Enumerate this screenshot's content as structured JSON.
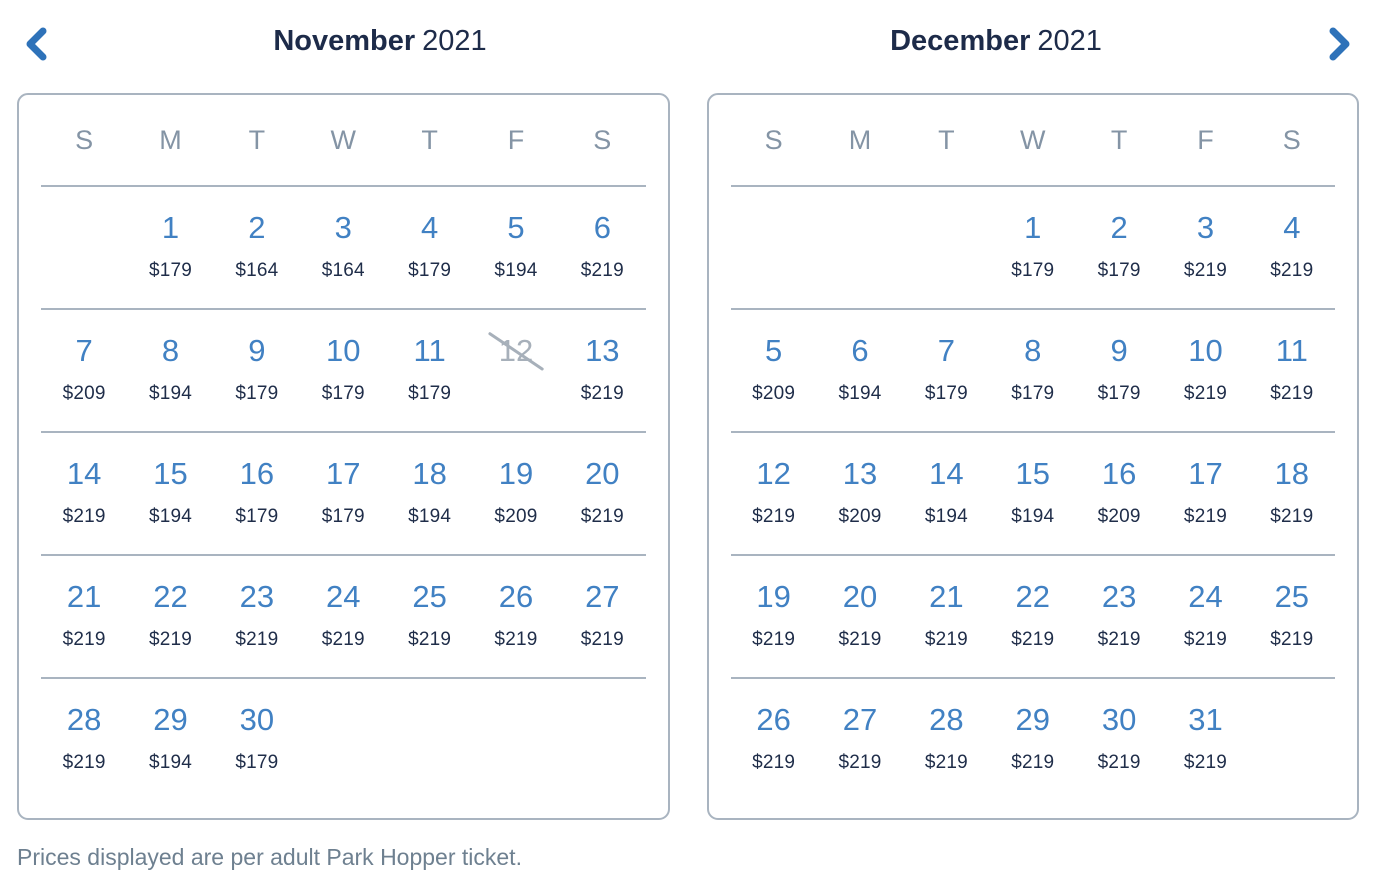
{
  "colors": {
    "date_blue": "#4181c3",
    "chevron_blue": "#2e72b9",
    "title_navy": "#1d2b49",
    "price_navy": "#1f2d49",
    "weekday_gray": "#8494a5",
    "divider_gray": "#a9b4c0",
    "card_border_gray": "#a9b4c0",
    "footer_gray": "#6e8090",
    "unavailable_gray": "#a7b0ba"
  },
  "header": {
    "prev_icon": "chevron-left",
    "next_icon": "chevron-right"
  },
  "day_headers": [
    "S",
    "M",
    "T",
    "W",
    "T",
    "F",
    "S"
  ],
  "months": [
    {
      "name": "November",
      "year": "2021",
      "weeks": [
        [
          {},
          {
            "day": "1",
            "price": "$179"
          },
          {
            "day": "2",
            "price": "$164"
          },
          {
            "day": "3",
            "price": "$164"
          },
          {
            "day": "4",
            "price": "$179"
          },
          {
            "day": "5",
            "price": "$194"
          },
          {
            "day": "6",
            "price": "$219"
          }
        ],
        [
          {
            "day": "7",
            "price": "$209"
          },
          {
            "day": "8",
            "price": "$194"
          },
          {
            "day": "9",
            "price": "$179"
          },
          {
            "day": "10",
            "price": "$179"
          },
          {
            "day": "11",
            "price": "$179"
          },
          {
            "day": "12",
            "unavailable": true
          },
          {
            "day": "13",
            "price": "$219"
          }
        ],
        [
          {
            "day": "14",
            "price": "$219"
          },
          {
            "day": "15",
            "price": "$194"
          },
          {
            "day": "16",
            "price": "$179"
          },
          {
            "day": "17",
            "price": "$179"
          },
          {
            "day": "18",
            "price": "$194"
          },
          {
            "day": "19",
            "price": "$209"
          },
          {
            "day": "20",
            "price": "$219"
          }
        ],
        [
          {
            "day": "21",
            "price": "$219"
          },
          {
            "day": "22",
            "price": "$219"
          },
          {
            "day": "23",
            "price": "$219"
          },
          {
            "day": "24",
            "price": "$219"
          },
          {
            "day": "25",
            "price": "$219"
          },
          {
            "day": "26",
            "price": "$219"
          },
          {
            "day": "27",
            "price": "$219"
          }
        ],
        [
          {
            "day": "28",
            "price": "$219"
          },
          {
            "day": "29",
            "price": "$194"
          },
          {
            "day": "30",
            "price": "$179"
          },
          {},
          {},
          {},
          {}
        ]
      ]
    },
    {
      "name": "December",
      "year": "2021",
      "weeks": [
        [
          {},
          {},
          {},
          {
            "day": "1",
            "price": "$179"
          },
          {
            "day": "2",
            "price": "$179"
          },
          {
            "day": "3",
            "price": "$219"
          },
          {
            "day": "4",
            "price": "$219"
          }
        ],
        [
          {
            "day": "5",
            "price": "$209"
          },
          {
            "day": "6",
            "price": "$194"
          },
          {
            "day": "7",
            "price": "$179"
          },
          {
            "day": "8",
            "price": "$179"
          },
          {
            "day": "9",
            "price": "$179"
          },
          {
            "day": "10",
            "price": "$219"
          },
          {
            "day": "11",
            "price": "$219"
          }
        ],
        [
          {
            "day": "12",
            "price": "$219"
          },
          {
            "day": "13",
            "price": "$209"
          },
          {
            "day": "14",
            "price": "$194"
          },
          {
            "day": "15",
            "price": "$194"
          },
          {
            "day": "16",
            "price": "$209"
          },
          {
            "day": "17",
            "price": "$219"
          },
          {
            "day": "18",
            "price": "$219"
          }
        ],
        [
          {
            "day": "19",
            "price": "$219"
          },
          {
            "day": "20",
            "price": "$219"
          },
          {
            "day": "21",
            "price": "$219"
          },
          {
            "day": "22",
            "price": "$219"
          },
          {
            "day": "23",
            "price": "$219"
          },
          {
            "day": "24",
            "price": "$219"
          },
          {
            "day": "25",
            "price": "$219"
          }
        ],
        [
          {
            "day": "26",
            "price": "$219"
          },
          {
            "day": "27",
            "price": "$219"
          },
          {
            "day": "28",
            "price": "$219"
          },
          {
            "day": "29",
            "price": "$219"
          },
          {
            "day": "30",
            "price": "$219"
          },
          {
            "day": "31",
            "price": "$219"
          },
          {}
        ]
      ]
    }
  ],
  "footer": {
    "note": "Prices displayed are per adult Park Hopper ticket."
  }
}
